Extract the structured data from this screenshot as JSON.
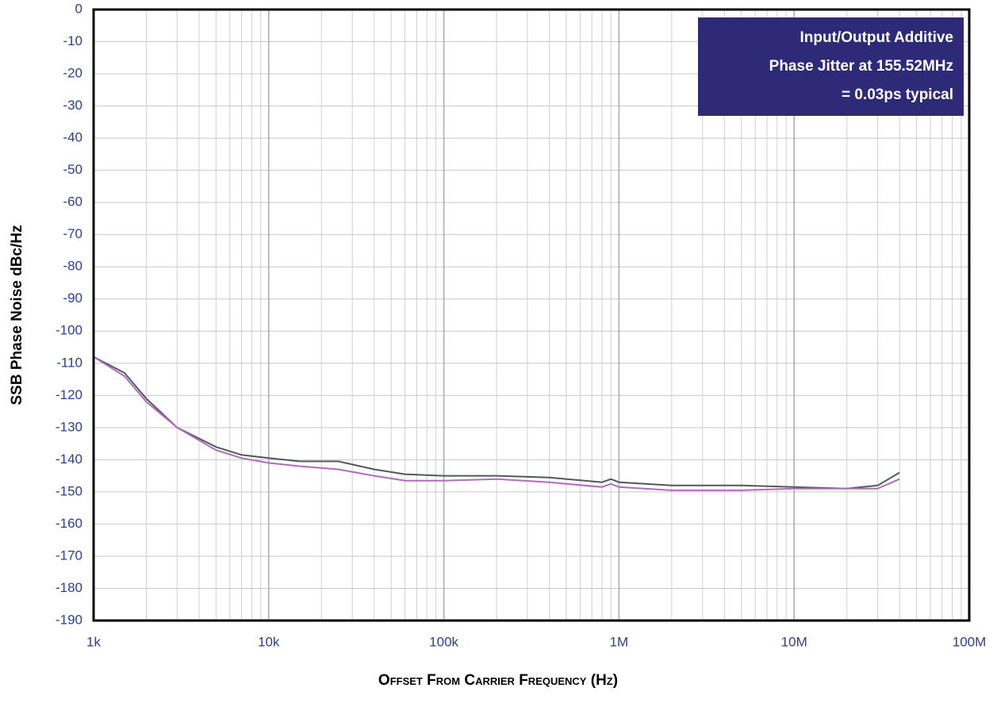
{
  "chart_data": {
    "type": "line",
    "xlabel": "Offset From Carrier Frequency (Hz)",
    "ylabel": "SSB Phase Noise dBc/Hz",
    "annotation": [
      "Input/Output Additive",
      "Phase Jitter at 155.52MHz",
      "= 0.03ps typical"
    ],
    "xscale": "log",
    "grid": true,
    "xlim": [
      1000,
      100000000
    ],
    "xticks": [
      {
        "value": 1000,
        "label": "1k"
      },
      {
        "value": 10000,
        "label": "10k"
      },
      {
        "value": 100000,
        "label": "100k"
      },
      {
        "value": 1000000,
        "label": "1M"
      },
      {
        "value": 10000000,
        "label": "10M"
      },
      {
        "value": 100000000,
        "label": "100M"
      }
    ],
    "ylim": [
      -190,
      0
    ],
    "yticks": [
      0,
      -10,
      -20,
      -30,
      -40,
      -50,
      -60,
      -70,
      -80,
      -90,
      -100,
      -110,
      -120,
      -130,
      -140,
      -150,
      -160,
      -170,
      -180,
      -190
    ],
    "x": [
      1000,
      1500,
      2000,
      3000,
      5000,
      7000,
      10000,
      15000,
      25000,
      40000,
      60000,
      100000,
      200000,
      400000,
      800000,
      900000,
      1000000,
      2000000,
      5000000,
      10000000,
      20000000,
      30000000,
      40000000
    ],
    "series": [
      {
        "color": "#4f5a58",
        "values": [
          -108,
          -113,
          -121,
          -130,
          -136,
          -138.5,
          -139.5,
          -140.5,
          -140.5,
          -143,
          -144.5,
          -145,
          -145,
          -145.5,
          -147,
          -146,
          -147,
          -148,
          -148,
          -148.5,
          -149,
          -148,
          -144
        ]
      },
      {
        "color": "#b36bbd",
        "values": [
          -108,
          -114,
          -122,
          -130,
          -137,
          -139.5,
          -141,
          -142,
          -143,
          -145,
          -146.5,
          -146.5,
          -146,
          -147,
          -148.5,
          -147.5,
          -148.5,
          -149.5,
          -149.5,
          -149,
          -149,
          -149,
          -146
        ]
      }
    ]
  }
}
